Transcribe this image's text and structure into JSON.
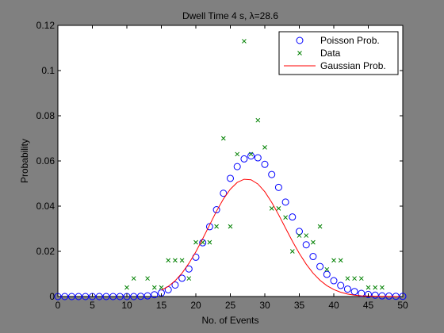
{
  "chart_data": {
    "type": "scatter",
    "title": "Dwell Time 4 s, λ=28.6",
    "xlabel": "No. of Events",
    "ylabel": "Probability",
    "xlim": [
      0,
      50
    ],
    "ylim": [
      0,
      0.12
    ],
    "xticks": [
      "0",
      "5",
      "10",
      "15",
      "20",
      "25",
      "30",
      "35",
      "40",
      "45",
      "50"
    ],
    "yticks": [
      "0",
      "0.02",
      "0.04",
      "0.06",
      "0.08",
      "0.1",
      "0.12"
    ],
    "grid": false,
    "legend_position": "top-right",
    "background_color": "#808080",
    "axes_color": "#ffffff",
    "series": [
      {
        "name": "Poisson Prob.",
        "marker": "circle",
        "color": "#0000ff",
        "x": [
          0,
          1,
          2,
          3,
          4,
          5,
          6,
          7,
          8,
          9,
          10,
          11,
          12,
          13,
          14,
          15,
          16,
          17,
          18,
          19,
          20,
          21,
          22,
          23,
          24,
          25,
          26,
          27,
          28,
          29,
          30,
          31,
          32,
          33,
          34,
          35,
          36,
          37,
          38,
          39,
          40,
          41,
          42,
          43,
          44,
          45,
          46,
          47,
          48,
          49,
          50
        ],
        "y": [
          0,
          0,
          0,
          0,
          0,
          0,
          0,
          0,
          0,
          0,
          0,
          0,
          0.0001,
          0.0003,
          0.0008,
          0.0016,
          0.003,
          0.0051,
          0.0081,
          0.0122,
          0.0174,
          0.0238,
          0.0309,
          0.0384,
          0.0457,
          0.0523,
          0.0575,
          0.0609,
          0.0622,
          0.0614,
          0.0585,
          0.054,
          0.0483,
          0.0418,
          0.0352,
          0.0288,
          0.0229,
          0.0177,
          0.0133,
          0.0098,
          0.007,
          0.0049,
          0.0033,
          0.0022,
          0.0014,
          0.0009,
          0.0006,
          0.0003,
          0.0002,
          0.0001,
          0.0001
        ]
      },
      {
        "name": "Data",
        "marker": "x",
        "color": "#008000",
        "x": [
          10,
          11,
          13,
          14,
          15,
          16,
          17,
          18,
          19,
          20,
          21,
          22,
          23,
          24,
          25,
          26,
          27,
          28,
          29,
          30,
          31,
          32,
          33,
          34,
          35,
          36,
          37,
          38,
          39,
          40,
          41,
          42,
          43,
          44,
          45,
          46,
          47
        ],
        "y": [
          0.004,
          0.008,
          0.008,
          0.004,
          0.004,
          0.016,
          0.016,
          0.016,
          0.008,
          0.024,
          0.024,
          0.024,
          0.031,
          0.07,
          0.031,
          0.063,
          0.113,
          0.063,
          0.078,
          0.066,
          0.039,
          0.039,
          0.035,
          0.02,
          0.027,
          0.027,
          0.024,
          0.031,
          0.012,
          0.016,
          0.016,
          0.008,
          0.008,
          0.008,
          0.004,
          0.004,
          0.004
        ]
      },
      {
        "name": "Gaussian Prob.",
        "marker": "line",
        "color": "#ff0000",
        "x": [
          15,
          16,
          17,
          18,
          19,
          20,
          21,
          22,
          23,
          24,
          25,
          26,
          27,
          28,
          29,
          30,
          31,
          32,
          33,
          34,
          35,
          36,
          37,
          38,
          39,
          40,
          41,
          42,
          43,
          44,
          45,
          46,
          47,
          48,
          49,
          50
        ],
        "y": [
          0.0028,
          0.0045,
          0.007,
          0.0104,
          0.0147,
          0.0198,
          0.0256,
          0.0317,
          0.0378,
          0.0432,
          0.0475,
          0.0505,
          0.0519,
          0.0517,
          0.0498,
          0.0464,
          0.0417,
          0.0362,
          0.0303,
          0.0245,
          0.0191,
          0.0143,
          0.0103,
          0.0072,
          0.0048,
          0.0031,
          0.0019,
          0.0011,
          0.0006,
          0.0003,
          0.0002,
          0.0001,
          5e-05,
          2e-05,
          1e-05,
          0
        ]
      }
    ]
  }
}
